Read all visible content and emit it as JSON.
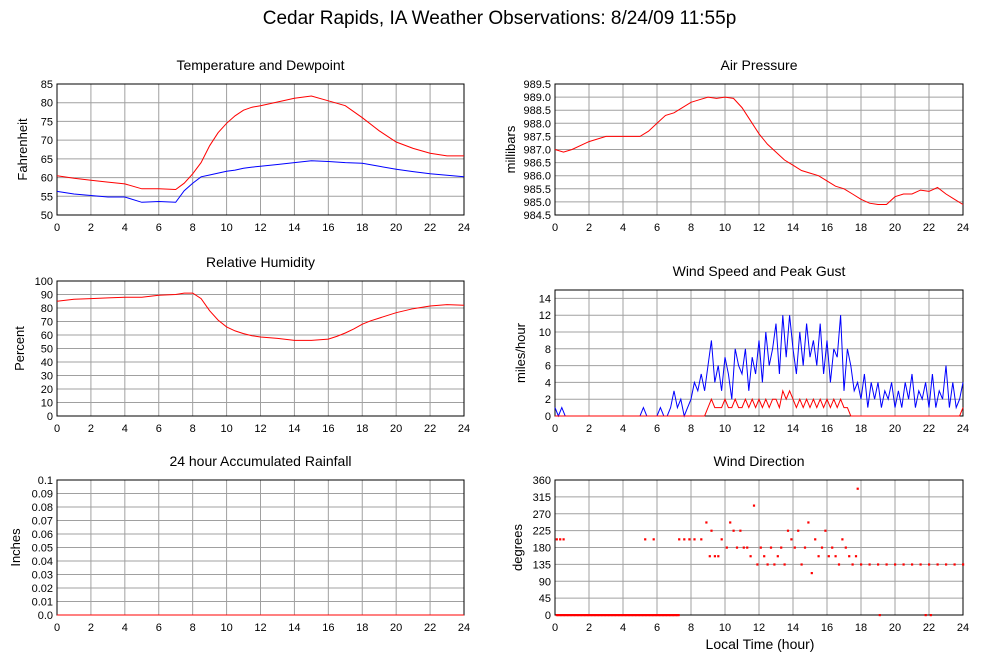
{
  "title": "Cedar Rapids, IA Weather Observations: 8/24/09 11:55p",
  "xlabel": "Local Time (hour)",
  "x_ticks": [
    0,
    2,
    4,
    6,
    8,
    10,
    12,
    14,
    16,
    18,
    20,
    22,
    24
  ],
  "colors": {
    "red": "#ff0000",
    "blue": "#0000ff",
    "grid": "#a0a0a0"
  },
  "chart_data": [
    {
      "type": "line",
      "title": "Temperature and Dewpoint",
      "ylabel": "Fahrenheit",
      "ylim": [
        50,
        85
      ],
      "y_ticks": [
        "50",
        "55",
        "60",
        "65",
        "70",
        "75",
        "80",
        "85"
      ],
      "x": [
        0,
        1,
        2,
        3,
        4,
        5,
        6,
        7,
        7.5,
        8,
        8.5,
        9,
        9.5,
        10,
        10.5,
        11,
        11.5,
        12,
        13,
        14,
        15,
        16,
        17,
        18,
        19,
        20,
        21,
        22,
        23,
        24
      ],
      "series": [
        {
          "color": "#ff0000",
          "values": [
            60.5,
            59.8,
            59.3,
            58.8,
            58.3,
            57.0,
            57.0,
            56.8,
            58.5,
            61.0,
            64.0,
            68.5,
            72.0,
            74.5,
            76.5,
            78.0,
            78.8,
            79.2,
            80.2,
            81.2,
            81.8,
            80.5,
            79.2,
            76.0,
            72.5,
            69.5,
            67.8,
            66.5,
            65.8,
            65.8
          ]
        },
        {
          "color": "#0000ff",
          "values": [
            56.3,
            55.6,
            55.2,
            54.8,
            54.8,
            53.4,
            53.6,
            53.4,
            56.5,
            58.5,
            60.2,
            60.7,
            61.2,
            61.7,
            62.0,
            62.5,
            62.8,
            63.0,
            63.5,
            64.0,
            64.5,
            64.3,
            64.0,
            63.8,
            63.0,
            62.2,
            61.6,
            61.0,
            60.6,
            60.2
          ]
        }
      ]
    },
    {
      "type": "line",
      "title": "Air Pressure",
      "ylabel": "millibars",
      "ylim": [
        984.5,
        989.5
      ],
      "y_ticks": [
        "984.5",
        "985.0",
        "985.5",
        "986.0",
        "986.5",
        "987.0",
        "987.5",
        "988.0",
        "988.5",
        "989.0",
        "989.5"
      ],
      "x": [
        0,
        0.5,
        1,
        2,
        3,
        4,
        5,
        5.5,
        6,
        6.5,
        7,
        7.5,
        8,
        8.5,
        9,
        9.5,
        10,
        10.5,
        11,
        11.5,
        12,
        12.5,
        13,
        13.5,
        14,
        14.5,
        15,
        15.5,
        16,
        16.5,
        17,
        17.5,
        18,
        18.5,
        19,
        19.5,
        20,
        20.5,
        21,
        21.5,
        22,
        22.5,
        23,
        23.5,
        24
      ],
      "series": [
        {
          "color": "#ff0000",
          "values": [
            987.0,
            986.9,
            987.0,
            987.3,
            987.5,
            987.5,
            987.5,
            987.7,
            988.0,
            988.3,
            988.4,
            988.6,
            988.8,
            988.9,
            989.0,
            988.95,
            989.0,
            988.95,
            988.6,
            988.1,
            987.6,
            987.2,
            986.9,
            986.6,
            986.4,
            986.2,
            986.1,
            986.0,
            985.8,
            985.6,
            985.5,
            985.3,
            985.1,
            984.95,
            984.9,
            984.9,
            985.2,
            985.3,
            985.3,
            985.45,
            985.4,
            985.55,
            985.3,
            985.1,
            984.9
          ]
        }
      ]
    },
    {
      "type": "line",
      "title": "Relative Humidity",
      "ylabel": "Percent",
      "ylim": [
        0,
        100
      ],
      "y_ticks": [
        "0",
        "10",
        "20",
        "30",
        "40",
        "50",
        "60",
        "70",
        "80",
        "90",
        "100"
      ],
      "x": [
        0,
        1,
        2,
        3,
        4,
        5,
        6,
        7,
        7.5,
        8,
        8.5,
        9,
        9.5,
        10,
        10.5,
        11,
        11.5,
        12,
        13,
        14,
        15,
        16,
        16.5,
        17,
        17.5,
        18,
        18.5,
        19,
        20,
        21,
        22,
        23,
        24
      ],
      "series": [
        {
          "color": "#ff0000",
          "values": [
            85,
            86.5,
            87,
            87.5,
            88,
            88,
            89.5,
            90,
            91,
            91,
            87,
            78,
            71,
            66,
            63,
            61,
            59.5,
            58.5,
            57.5,
            56,
            56,
            57,
            59,
            61.5,
            64.5,
            68,
            70.5,
            72.5,
            76.5,
            79.5,
            81.5,
            82.5,
            82
          ]
        }
      ]
    },
    {
      "type": "line",
      "title": "Wind Speed and Peak Gust",
      "ylabel": "miles/hour",
      "ylim": [
        0,
        15
      ],
      "y_ticks": [
        "0",
        "2",
        "4",
        "6",
        "8",
        "10",
        "12",
        "14"
      ],
      "x": [
        0,
        0.2,
        0.4,
        0.6,
        0.8,
        5,
        5.2,
        5.4,
        5.6,
        6,
        6.2,
        6.4,
        6.6,
        6.8,
        7,
        7.2,
        7.4,
        7.6,
        7.8,
        8,
        8.2,
        8.4,
        8.6,
        8.8,
        9,
        9.2,
        9.4,
        9.6,
        9.8,
        10,
        10.2,
        10.4,
        10.6,
        10.8,
        11,
        11.2,
        11.4,
        11.6,
        11.8,
        12,
        12.2,
        12.4,
        12.6,
        12.8,
        13,
        13.2,
        13.4,
        13.6,
        13.8,
        14,
        14.2,
        14.4,
        14.6,
        14.8,
        15,
        15.2,
        15.4,
        15.6,
        15.8,
        16,
        16.2,
        16.4,
        16.6,
        16.8,
        17,
        17.2,
        17.4,
        17.6,
        17.8,
        18,
        18.2,
        18.4,
        18.6,
        18.8,
        19,
        19.2,
        19.4,
        19.6,
        19.8,
        20,
        20.2,
        20.4,
        20.6,
        20.8,
        21,
        21.2,
        21.4,
        21.6,
        21.8,
        22,
        22.2,
        22.4,
        22.6,
        22.8,
        23,
        23.2,
        23.4,
        23.6,
        23.8,
        24
      ],
      "series": [
        {
          "color": "#0000ff",
          "values": [
            1,
            0,
            1,
            0,
            0,
            0,
            1,
            0,
            0,
            0,
            1,
            0,
            0,
            1,
            3,
            1,
            2,
            0,
            1,
            2,
            4,
            3,
            5,
            3,
            6,
            9,
            4,
            6,
            3,
            7,
            5,
            2,
            8,
            6,
            5,
            8,
            3,
            7,
            5,
            9,
            4,
            10,
            6,
            8,
            11,
            5,
            12,
            7,
            12,
            8,
            5,
            10,
            6,
            11,
            7,
            9,
            6,
            11,
            5,
            9,
            4,
            8,
            7,
            12,
            3,
            8,
            6,
            3,
            4,
            2,
            5,
            1,
            4,
            2,
            4,
            1,
            3,
            2,
            4,
            1,
            3,
            1,
            4,
            2,
            5,
            1,
            3,
            2,
            4,
            1,
            5,
            1,
            3,
            2,
            6,
            1,
            4,
            1,
            2,
            4
          ]
        },
        {
          "color": "#ff0000",
          "values": [
            0,
            0,
            0,
            0,
            0,
            0,
            0,
            0,
            0,
            0,
            0,
            0,
            0,
            0,
            0,
            0,
            0,
            0,
            0,
            0,
            0,
            0,
            0,
            0,
            1,
            2,
            1,
            1,
            1,
            2,
            1,
            1,
            2,
            1,
            1,
            2,
            1,
            2,
            1,
            2,
            1,
            2,
            1,
            2,
            2,
            1,
            3,
            2,
            3,
            2,
            1,
            2,
            1,
            2,
            1,
            2,
            1,
            2,
            1,
            2,
            1,
            2,
            1,
            2,
            1,
            1,
            0,
            0,
            0,
            0,
            0,
            0,
            0,
            0,
            0,
            0,
            0,
            0,
            0,
            0,
            0,
            0,
            0,
            0,
            0,
            0,
            0,
            0,
            0,
            0,
            0,
            0,
            0,
            0,
            0,
            0,
            0,
            0,
            0,
            1
          ]
        }
      ]
    },
    {
      "type": "line",
      "title": "24 hour Accumulated Rainfall",
      "ylabel": "Inches",
      "ylim": [
        0,
        0.1
      ],
      "y_ticks": [
        "0.0",
        "0.01",
        "0.02",
        "0.03",
        "0.04",
        "0.05",
        "0.06",
        "0.07",
        "0.08",
        "0.09",
        "0.1"
      ],
      "x": [
        0,
        24
      ],
      "series": [
        {
          "color": "#ff0000",
          "values": [
            0,
            0
          ]
        }
      ]
    },
    {
      "type": "scatter",
      "title": "Wind Direction",
      "ylabel": "degrees",
      "ylim": [
        0,
        360
      ],
      "y_ticks": [
        "0",
        "45",
        "90",
        "135",
        "180",
        "225",
        "270",
        "315",
        "360"
      ],
      "series": [
        {
          "color": "#ff0000",
          "x": [
            0.1,
            0.3,
            0.5,
            5.3,
            5.8,
            7.3,
            7.6,
            7.9,
            8.2,
            8.6,
            8.9,
            9.1,
            9.2,
            9.4,
            9.6,
            9.8,
            10.1,
            10.3,
            10.5,
            10.7,
            10.9,
            11.1,
            11.3,
            11.5,
            11.7,
            11.9,
            12.1,
            12.3,
            12.5,
            12.7,
            12.9,
            13.1,
            13.3,
            13.5,
            13.7,
            13.9,
            14.1,
            14.3,
            14.5,
            14.7,
            14.9,
            15.1,
            15.3,
            15.5,
            15.7,
            15.9,
            16.1,
            16.3,
            16.5,
            16.7,
            16.9,
            17.1,
            17.3,
            17.5,
            17.7,
            17.8,
            18.0,
            18.5,
            19.0,
            19.5,
            20.0,
            20.5,
            21.0,
            21.5,
            22.0,
            22.5,
            23.0,
            23.5,
            24.0,
            19.1,
            21.8,
            22.1
          ],
          "y": [
            202,
            202,
            202,
            202,
            202,
            202,
            202,
            202,
            202,
            202,
            247,
            157,
            225,
            157,
            157,
            202,
            180,
            247,
            225,
            180,
            225,
            180,
            180,
            157,
            292,
            135,
            180,
            157,
            135,
            180,
            135,
            157,
            180,
            135,
            225,
            202,
            180,
            225,
            135,
            180,
            247,
            112,
            202,
            157,
            180,
            225,
            157,
            180,
            157,
            135,
            202,
            180,
            157,
            135,
            157,
            337,
            135,
            135,
            135,
            135,
            135,
            135,
            135,
            135,
            135,
            135,
            135,
            135,
            135,
            0,
            0,
            0
          ]
        },
        {
          "color": "#ff0000",
          "x_range": [
            0.1,
            7.3
          ],
          "y_value": 0
        }
      ]
    }
  ]
}
